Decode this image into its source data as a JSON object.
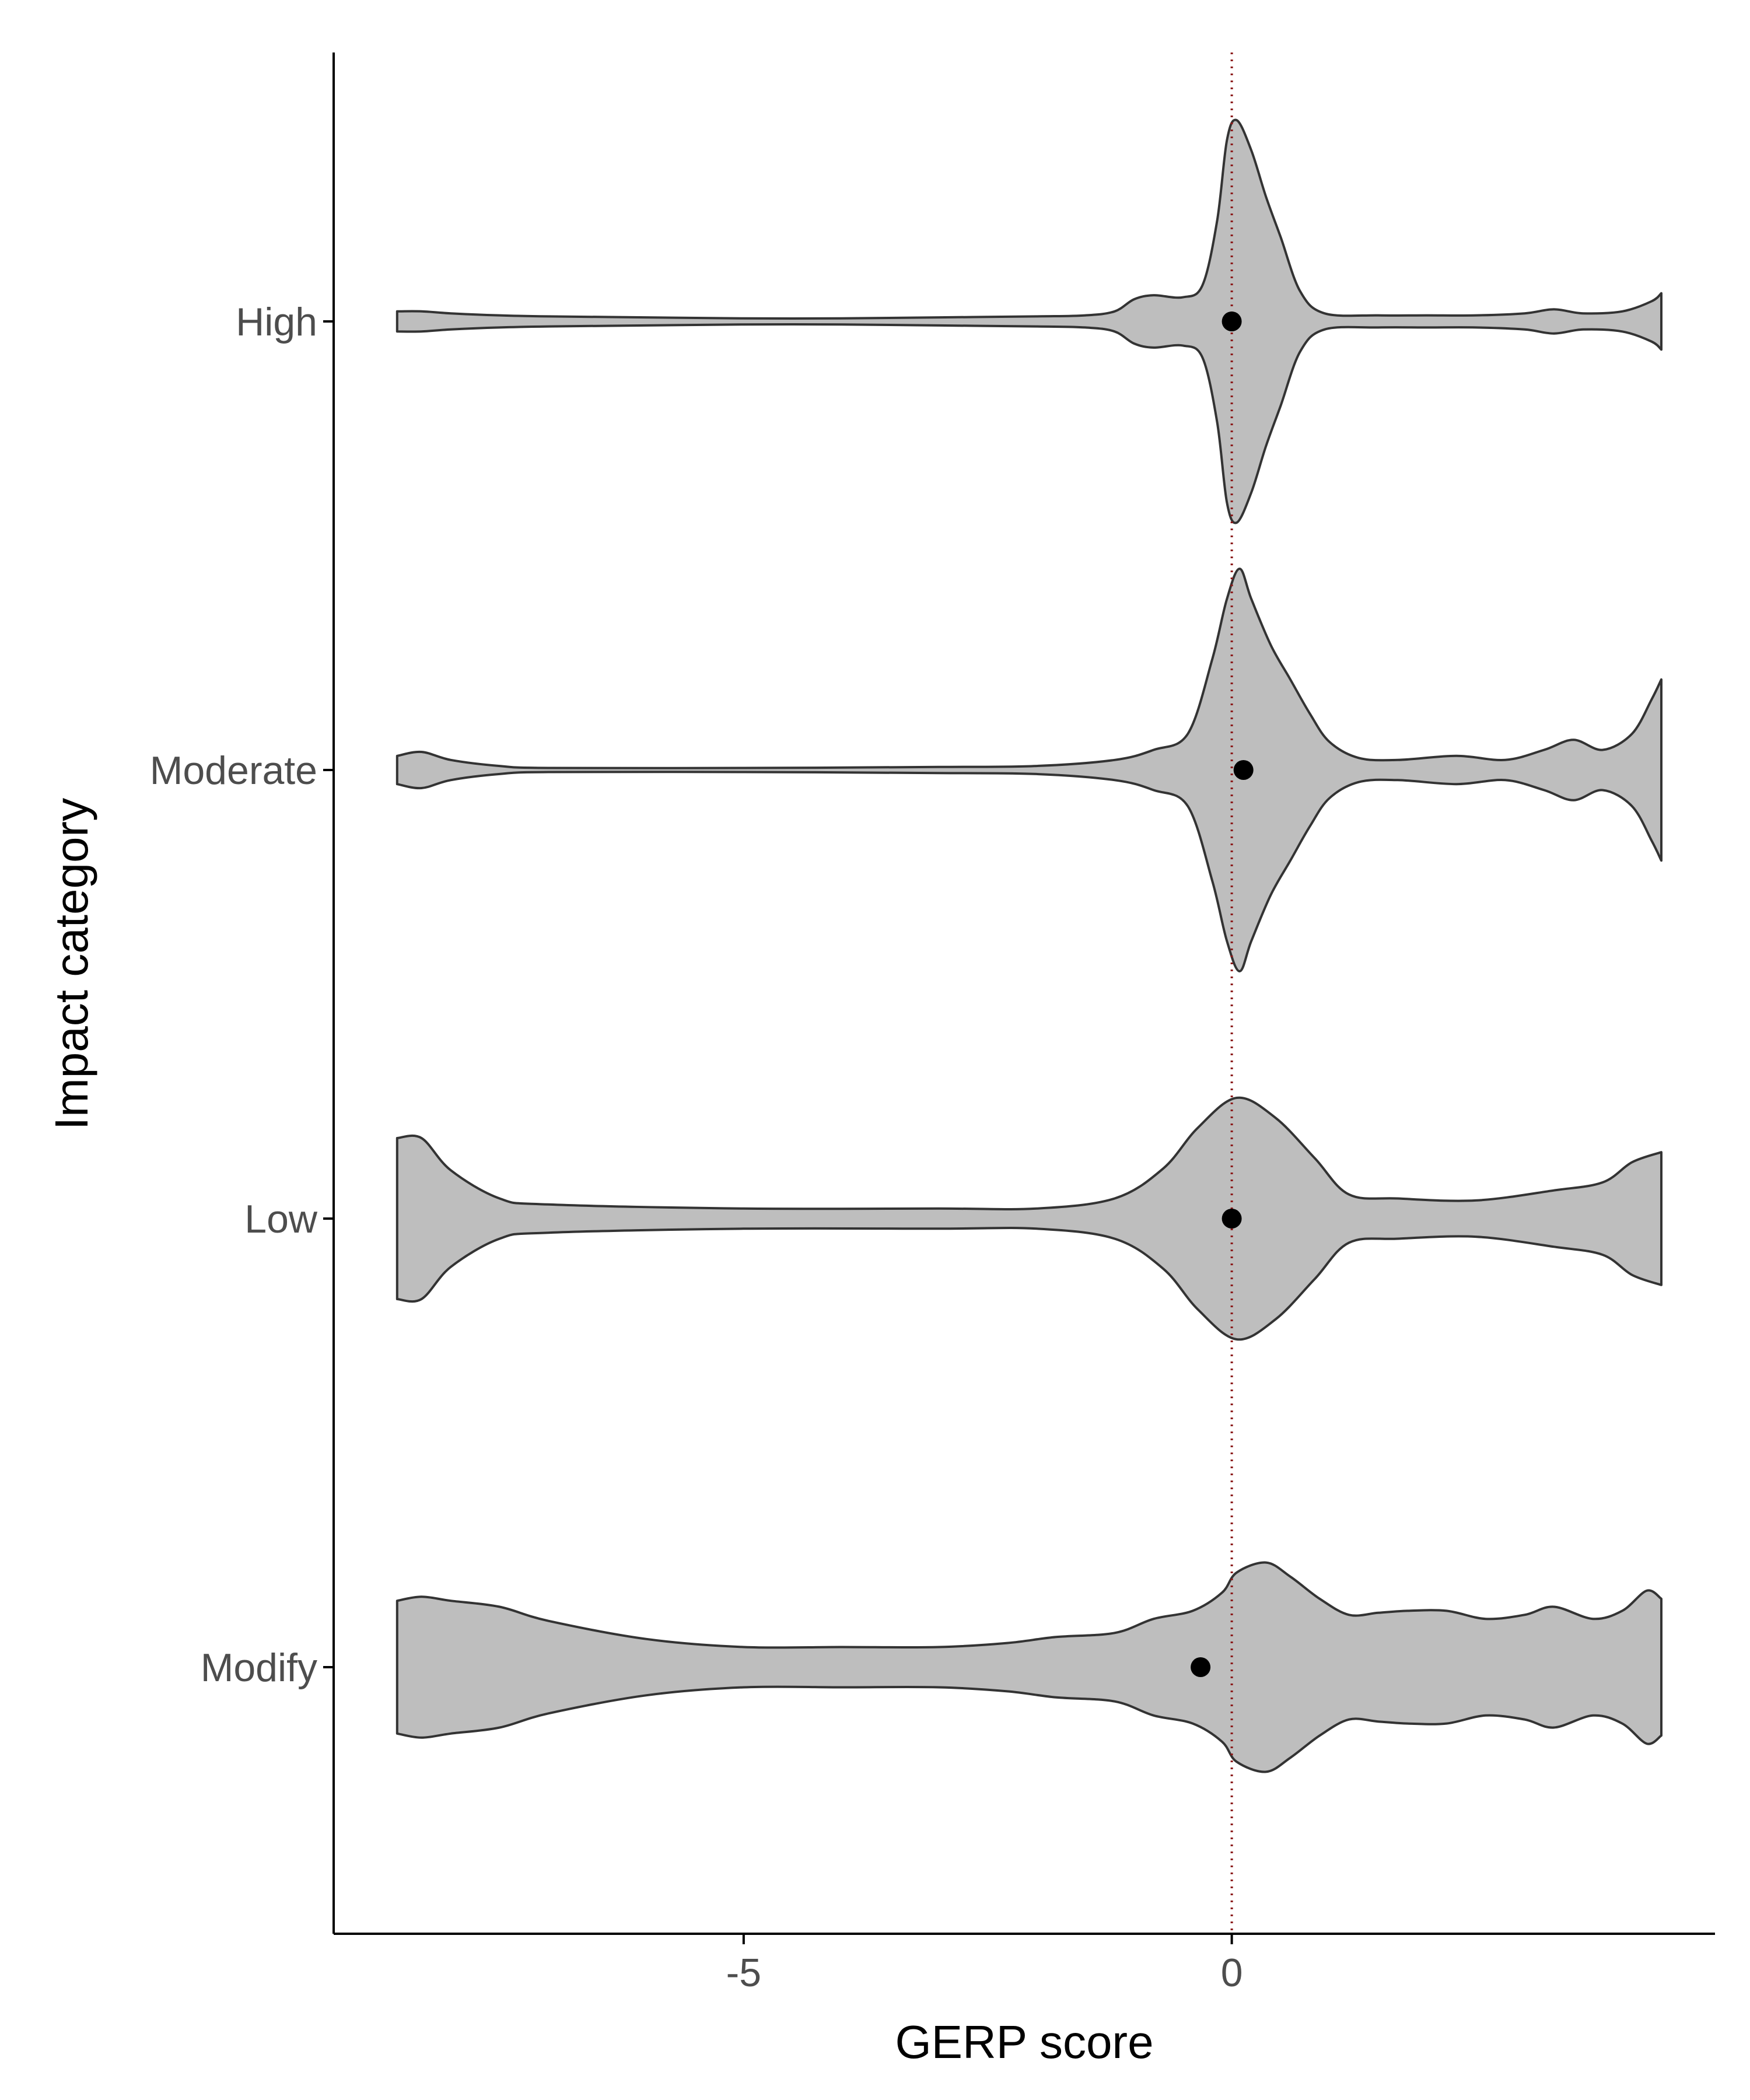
{
  "chart_data": {
    "type": "violin",
    "title": "",
    "xlabel": "GERP score",
    "ylabel": "Impact category",
    "xlim": [
      -9.2,
      4.95
    ],
    "xticks": [
      {
        "value": -5,
        "label": "-5"
      },
      {
        "value": 0,
        "label": "0"
      }
    ],
    "reference_line": {
      "x": 0,
      "style": "dotted",
      "color": "#8b1a1a"
    },
    "grid": false,
    "legend": "none",
    "fill_color": "#bebebe",
    "outline_color": "#333333",
    "categories": [
      "High",
      "Moderate",
      "Low",
      "Modify"
    ],
    "series": [
      {
        "category": "High",
        "median": 0.0,
        "density": [
          [
            -8.55,
            0.05
          ],
          [
            -8.3,
            0.05
          ],
          [
            -8.0,
            0.04
          ],
          [
            -7.5,
            0.03
          ],
          [
            -7.0,
            0.025
          ],
          [
            -6.0,
            0.02
          ],
          [
            -5.0,
            0.015
          ],
          [
            -4.0,
            0.015
          ],
          [
            -3.0,
            0.02
          ],
          [
            -2.0,
            0.025
          ],
          [
            -1.5,
            0.03
          ],
          [
            -1.2,
            0.05
          ],
          [
            -1.0,
            0.11
          ],
          [
            -0.8,
            0.13
          ],
          [
            -0.5,
            0.12
          ],
          [
            -0.3,
            0.18
          ],
          [
            -0.15,
            0.5
          ],
          [
            -0.05,
            0.9
          ],
          [
            0.05,
            1.0
          ],
          [
            0.2,
            0.85
          ],
          [
            0.35,
            0.62
          ],
          [
            0.5,
            0.42
          ],
          [
            0.7,
            0.15
          ],
          [
            0.95,
            0.04
          ],
          [
            1.5,
            0.03
          ],
          [
            2.0,
            0.03
          ],
          [
            2.5,
            0.03
          ],
          [
            3.0,
            0.04
          ],
          [
            3.3,
            0.06
          ],
          [
            3.6,
            0.04
          ],
          [
            4.0,
            0.05
          ],
          [
            4.3,
            0.1
          ],
          [
            4.4,
            0.14
          ]
        ]
      },
      {
        "category": "Moderate",
        "median": 0.12,
        "density": [
          [
            -8.55,
            0.07
          ],
          [
            -8.3,
            0.09
          ],
          [
            -8.0,
            0.05
          ],
          [
            -7.5,
            0.02
          ],
          [
            -7.0,
            0.01
          ],
          [
            -5.0,
            0.01
          ],
          [
            -3.0,
            0.015
          ],
          [
            -2.0,
            0.02
          ],
          [
            -1.2,
            0.05
          ],
          [
            -0.8,
            0.1
          ],
          [
            -0.45,
            0.18
          ],
          [
            -0.2,
            0.55
          ],
          [
            -0.05,
            0.85
          ],
          [
            0.08,
            1.0
          ],
          [
            0.2,
            0.85
          ],
          [
            0.4,
            0.62
          ],
          [
            0.6,
            0.45
          ],
          [
            0.8,
            0.28
          ],
          [
            1.0,
            0.14
          ],
          [
            1.3,
            0.06
          ],
          [
            1.7,
            0.05
          ],
          [
            2.3,
            0.07
          ],
          [
            2.8,
            0.05
          ],
          [
            3.2,
            0.1
          ],
          [
            3.5,
            0.15
          ],
          [
            3.8,
            0.1
          ],
          [
            4.1,
            0.18
          ],
          [
            4.3,
            0.35
          ],
          [
            4.4,
            0.45
          ]
        ]
      },
      {
        "category": "Low",
        "median": 0.0,
        "density": [
          [
            -8.55,
            0.4
          ],
          [
            -8.3,
            0.4
          ],
          [
            -8.0,
            0.24
          ],
          [
            -7.5,
            0.1
          ],
          [
            -7.0,
            0.07
          ],
          [
            -5.0,
            0.05
          ],
          [
            -3.0,
            0.05
          ],
          [
            -2.0,
            0.05
          ],
          [
            -1.2,
            0.1
          ],
          [
            -0.7,
            0.25
          ],
          [
            -0.35,
            0.45
          ],
          [
            0.05,
            0.6
          ],
          [
            0.45,
            0.5
          ],
          [
            0.85,
            0.3
          ],
          [
            1.2,
            0.12
          ],
          [
            1.7,
            0.1
          ],
          [
            2.5,
            0.09
          ],
          [
            3.3,
            0.14
          ],
          [
            3.8,
            0.18
          ],
          [
            4.1,
            0.28
          ],
          [
            4.4,
            0.33
          ]
        ]
      },
      {
        "category": "Modify",
        "median": -0.32,
        "density": [
          [
            -8.55,
            0.33
          ],
          [
            -8.3,
            0.35
          ],
          [
            -8.0,
            0.33
          ],
          [
            -7.5,
            0.3
          ],
          [
            -7.0,
            0.23
          ],
          [
            -6.0,
            0.14
          ],
          [
            -5.0,
            0.1
          ],
          [
            -4.0,
            0.1
          ],
          [
            -3.0,
            0.1
          ],
          [
            -2.3,
            0.12
          ],
          [
            -1.8,
            0.15
          ],
          [
            -1.2,
            0.17
          ],
          [
            -0.8,
            0.24
          ],
          [
            -0.4,
            0.28
          ],
          [
            -0.1,
            0.37
          ],
          [
            0.05,
            0.47
          ],
          [
            0.35,
            0.52
          ],
          [
            0.6,
            0.45
          ],
          [
            0.9,
            0.34
          ],
          [
            1.2,
            0.26
          ],
          [
            1.5,
            0.27
          ],
          [
            1.8,
            0.28
          ],
          [
            2.2,
            0.28
          ],
          [
            2.6,
            0.24
          ],
          [
            3.0,
            0.26
          ],
          [
            3.3,
            0.3
          ],
          [
            3.7,
            0.24
          ],
          [
            4.0,
            0.28
          ],
          [
            4.25,
            0.38
          ],
          [
            4.4,
            0.34
          ]
        ]
      }
    ]
  }
}
